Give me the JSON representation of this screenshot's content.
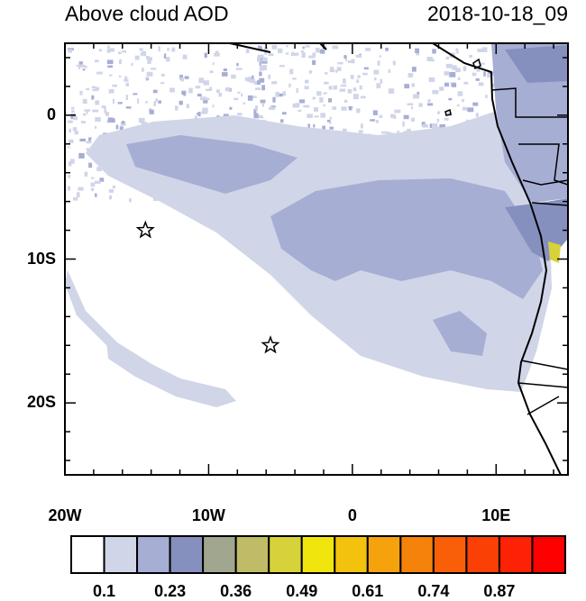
{
  "title": "Above cloud AOD",
  "timestamp": "2018-10-18_09",
  "lon_range": [
    -20,
    15
  ],
  "lat_range": [
    -25,
    5
  ],
  "x_ticks": [
    {
      "value": -20,
      "label": "20W"
    },
    {
      "value": -10,
      "label": "10W"
    },
    {
      "value": 0,
      "label": "0"
    },
    {
      "value": 10,
      "label": "10E"
    }
  ],
  "y_ticks": [
    {
      "value": 0,
      "label": "0"
    },
    {
      "value": -10,
      "label": "10S"
    },
    {
      "value": -20,
      "label": "20S"
    }
  ],
  "markers": [
    {
      "type": "star",
      "lon": -14.4,
      "lat": -8.0
    },
    {
      "type": "star",
      "lon": -5.7,
      "lat": -16.0
    }
  ],
  "colorbar": {
    "colors": [
      "#ffffff",
      "#d0d5e8",
      "#a7aed4",
      "#8690bf",
      "#a1a68f",
      "#bfbb66",
      "#d8d23a",
      "#f0e60e",
      "#f2c20f",
      "#f5a20c",
      "#f5820a",
      "#f95f08",
      "#fb4006",
      "#fd2205",
      "#ff0000"
    ],
    "labels": [
      "0.1",
      "0.23",
      "0.36",
      "0.49",
      "0.61",
      "0.74",
      "0.87"
    ]
  }
}
